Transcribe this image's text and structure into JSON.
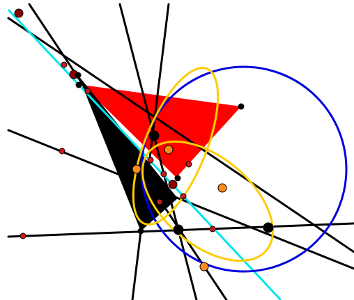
{
  "figure": {
    "description_free": true,
    "colors": {
      "background": "#ffffff",
      "red_triangle": "#ff0000",
      "black_triangle": "#000000",
      "lines": "#000000",
      "cyan_line": "#00e5ee",
      "blue_circle": "#0000dd",
      "yellow_ellipses": "#ffcc00",
      "point_large_dark": "#8b0000",
      "point_small_red": "#cc1a1a",
      "point_orange": "#ff8c1a",
      "point_black": "#000000"
    }
  }
}
